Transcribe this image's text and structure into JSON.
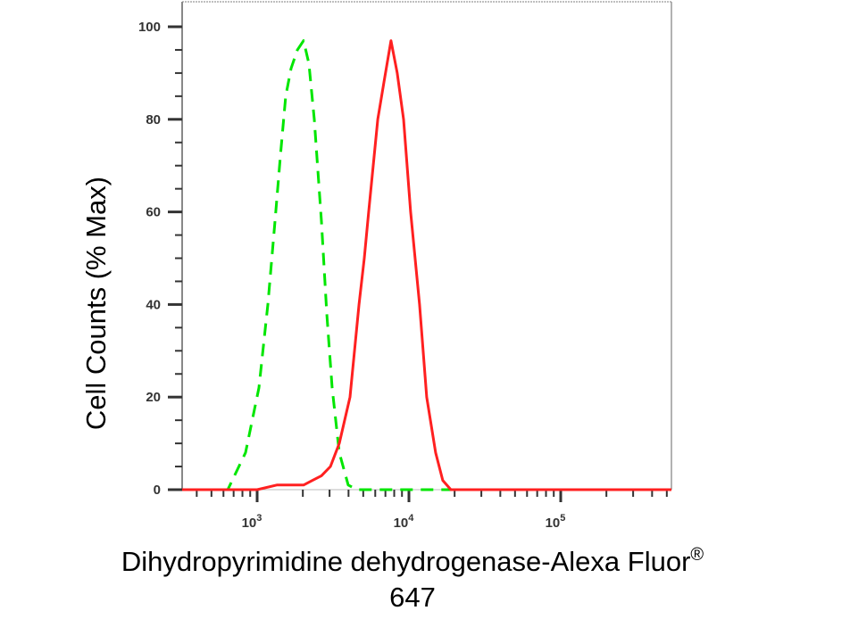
{
  "chart_data": {
    "type": "line",
    "title": "",
    "xlabel": "Dihydropyrimidine dehydrogenase-Alexa Fluor",
    "xlabel_superscript": "®",
    "xlabel_line2": "647",
    "ylabel": "Cell Counts (% Max)",
    "xscale": "log",
    "xlim": [
      320,
      537000
    ],
    "ylim": [
      0,
      105.8
    ],
    "grid": false,
    "x_ticks": [
      {
        "value": 1000,
        "base": "10",
        "exp": "3"
      },
      {
        "value": 10000,
        "base": "10",
        "exp": "4"
      },
      {
        "value": 100000,
        "base": "10",
        "exp": "5"
      }
    ],
    "y_ticks": [
      0,
      20,
      40,
      60,
      80,
      100
    ],
    "y_tick_labels": [
      "0",
      "20",
      "40",
      "60",
      "80",
      "100"
    ],
    "series": [
      {
        "style": "dashed",
        "color": "#00e600",
        "x": [
          320,
          640,
          839,
          1027,
          1177,
          1312,
          1423,
          1543,
          1674,
          1841,
          2023,
          2193,
          2379,
          2652,
          2877,
          3120,
          3475,
          3981,
          4560,
          537000
        ],
        "y": [
          0,
          0,
          8,
          22,
          40,
          58,
          72,
          85,
          91,
          95,
          97,
          92,
          80,
          58,
          38,
          22,
          8,
          1,
          0,
          0
        ]
      },
      {
        "style": "solid",
        "color": "#ff2020",
        "x": [
          320,
          1000,
          1347,
          2023,
          2315,
          2652,
          3039,
          3475,
          4090,
          4690,
          5080,
          5430,
          5815,
          6230,
          6840,
          7620,
          8370,
          9220,
          10260,
          11750,
          13100,
          15000,
          16700,
          18900,
          537000
        ],
        "y": [
          0,
          0,
          1,
          1,
          2,
          3,
          5,
          10,
          20,
          40,
          50,
          60,
          70,
          80,
          88,
          97,
          90,
          80,
          60,
          40,
          20,
          8,
          2,
          0,
          0
        ]
      }
    ]
  }
}
